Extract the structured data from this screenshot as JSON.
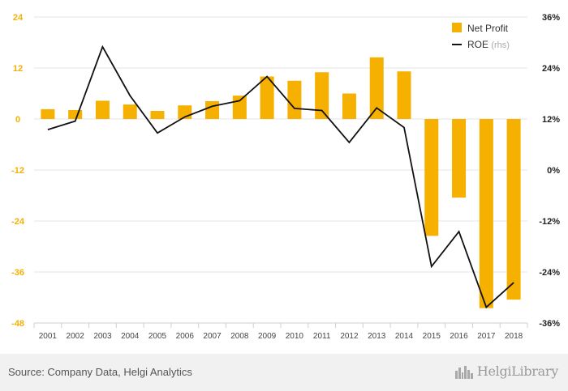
{
  "chart_data": {
    "type": "bar-line",
    "categories": [
      "2001",
      "2002",
      "2003",
      "2004",
      "2005",
      "2006",
      "2007",
      "2008",
      "2009",
      "2010",
      "2011",
      "2012",
      "2013",
      "2014",
      "2015",
      "2016",
      "2017",
      "2018"
    ],
    "series": [
      {
        "name": "Net Profit",
        "type": "bar",
        "axis": "left",
        "values": [
          2.3,
          2.1,
          4.3,
          3.4,
          1.9,
          3.2,
          4.2,
          5.5,
          10.0,
          9.0,
          11.0,
          6.0,
          14.5,
          11.2,
          -27.5,
          -18.5,
          -44.5,
          -42.5
        ]
      },
      {
        "name": "ROE",
        "name_suffix": "(rhs)",
        "type": "line",
        "axis": "right",
        "values": [
          9.5,
          11.5,
          29.0,
          17.5,
          8.7,
          12.5,
          15.0,
          16.3,
          22.0,
          14.5,
          14.0,
          6.5,
          14.6,
          10.0,
          -22.7,
          -14.5,
          -32.3,
          -26.5
        ]
      }
    ],
    "y_left": {
      "min": -48,
      "max": 24,
      "ticks": [
        "24",
        "12",
        "0",
        "-12",
        "-24",
        "-36",
        "-48"
      ],
      "tick_values": [
        24,
        12,
        0,
        -12,
        -24,
        -36,
        -48
      ]
    },
    "y_right": {
      "min": -36,
      "max": 36,
      "ticks": [
        "36%",
        "24%",
        "12%",
        "0%",
        "-12%",
        "-24%",
        "-36%"
      ],
      "tick_values": [
        36,
        24,
        12,
        0,
        -12,
        -24,
        -36
      ]
    },
    "grid": true,
    "legend": "top-right",
    "title": "",
    "xlabel": "",
    "ylabel": ""
  },
  "colors": {
    "bar": "#f5b000",
    "line": "#111111",
    "grid": "#e6e6e6",
    "left_ticks": "#f5b000"
  },
  "footer": {
    "source": "Source: Company Data, Helgi Analytics",
    "brand": "HelgiLibrary",
    "brand_icon": "city-skyline-icon"
  }
}
